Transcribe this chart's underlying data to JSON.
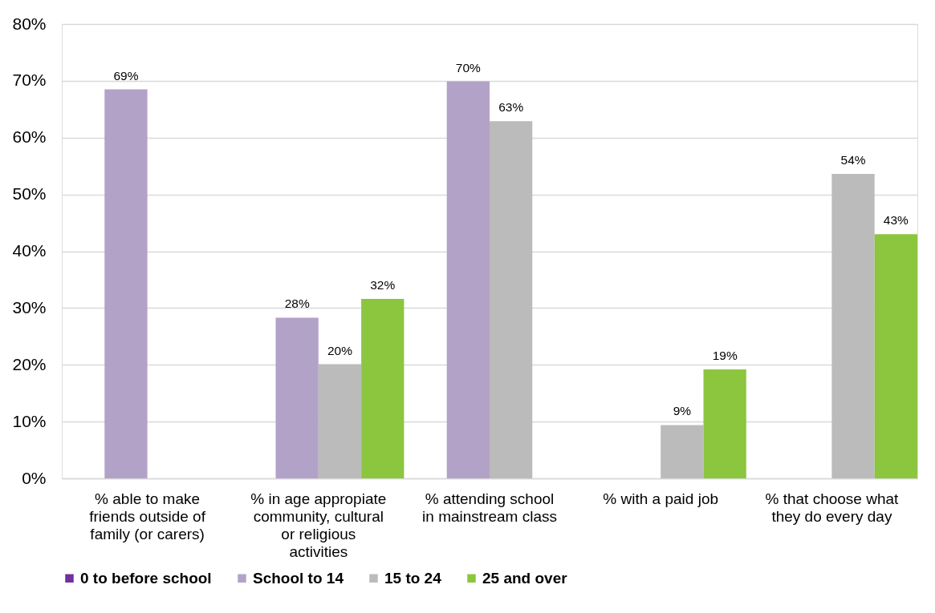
{
  "chart_data": {
    "type": "bar",
    "categories": [
      "% able to make friends outside of family (or carers)",
      "% in age appropiate community, cultural or religious activities",
      "% attending school in mainstream class",
      "% with a paid job",
      "% that choose what they do every day"
    ],
    "series": [
      {
        "name": "0 to before school",
        "color": "#7030a0",
        "values": [
          null,
          null,
          null,
          null,
          null
        ]
      },
      {
        "name": "School to 14",
        "color": "#b3a2c7",
        "values": [
          68.5,
          28.3,
          69.9,
          null,
          null
        ],
        "value_labels": [
          "69%",
          "28%",
          "70%",
          null,
          null
        ]
      },
      {
        "name": "15 to 24",
        "color": "#bbbbbb",
        "values": [
          null,
          20.1,
          62.9,
          9.4,
          53.6
        ],
        "value_labels": [
          null,
          "20%",
          "63%",
          "9%",
          "54%"
        ]
      },
      {
        "name": "25 and over",
        "color": "#8cc63f",
        "values": [
          null,
          31.6,
          null,
          19.2,
          43.0
        ],
        "value_labels": [
          null,
          "32%",
          null,
          "19%",
          "43%"
        ]
      }
    ],
    "ylim": [
      0,
      80
    ],
    "yticks": [
      {
        "value": 0,
        "label": "0%"
      },
      {
        "value": 10,
        "label": "10%"
      },
      {
        "value": 20,
        "label": "20%"
      },
      {
        "value": 30,
        "label": "30%"
      },
      {
        "value": 40,
        "label": "40%"
      },
      {
        "value": 50,
        "label": "50%"
      },
      {
        "value": 60,
        "label": "60%"
      },
      {
        "value": 70,
        "label": "70%"
      },
      {
        "value": 80,
        "label": "80%"
      }
    ],
    "grid": "y",
    "legend": "bottom"
  }
}
